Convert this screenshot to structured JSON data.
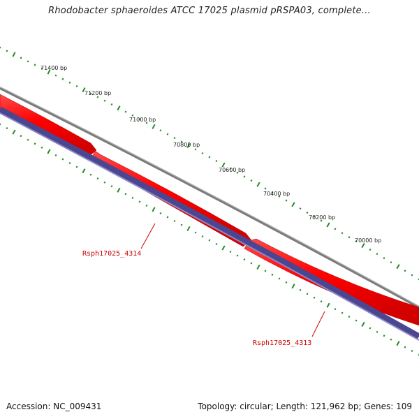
{
  "title": "Rhodobacter sphaeroides ATCC 17025 plasmid pRSPA03, complete...",
  "footer": {
    "accession": "Accession: NC_009431",
    "summary": "Topology: circular; Length: 121,962 bp; Genes: 109"
  },
  "ruler": {
    "color": "#228b22",
    "ticks": [
      "71400 bp",
      "71200 bp",
      "71000 bp",
      "70800 bp",
      "70600 bp",
      "70400 bp",
      "70200 bp",
      "70000 bp"
    ]
  },
  "genes": [
    {
      "label": "Rsph17025_4314",
      "color": "#ff0000",
      "strand": "reverse"
    },
    {
      "label": "Rsph17025_4313",
      "color": "#ff0000",
      "strand": "reverse"
    }
  ],
  "tracks": {
    "backbone_color": "#808080",
    "gene_color": "#ff0000",
    "gc_color": "#4b4690",
    "label_color": "#cc0000"
  }
}
